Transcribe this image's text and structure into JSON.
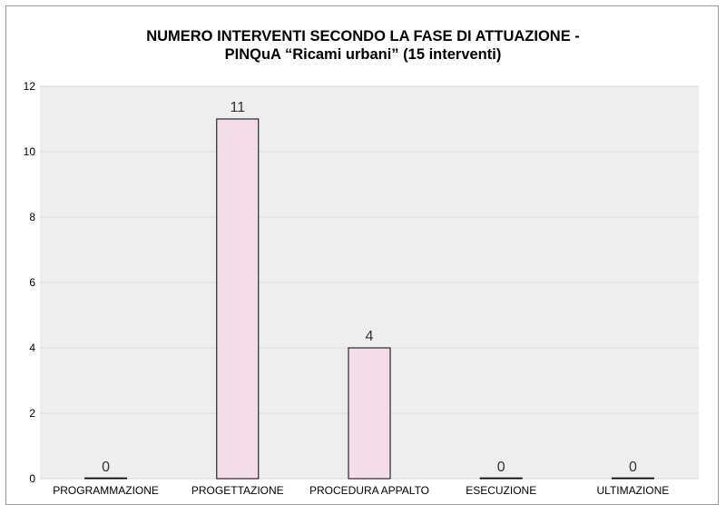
{
  "chart_data": {
    "type": "bar",
    "title": "NUMERO INTERVENTI SECONDO LA FASE DI ATTUAZIONE -",
    "subtitle": "PINQuA “Ricami urbani” (15 interventi)",
    "xlabel": "",
    "ylabel": "",
    "categories": [
      "PROGRAMMAZIONE",
      "PROGETTAZIONE",
      "PROCEDURA APPALTO",
      "ESECUZIONE",
      "ULTIMAZIONE"
    ],
    "values": [
      0,
      11,
      4,
      0,
      0
    ],
    "data_labels": [
      "0",
      "11",
      "4",
      "0",
      "0"
    ],
    "ylim": [
      0,
      12
    ],
    "yticks": [
      0,
      2,
      4,
      6,
      8,
      10,
      12
    ],
    "grid": true,
    "legend": "none",
    "colors": {
      "bar_fill": "#f4dde9",
      "bar_stroke": "#000000",
      "grid": "#d9d9d9",
      "plot_bg": "#eeeeee"
    }
  }
}
